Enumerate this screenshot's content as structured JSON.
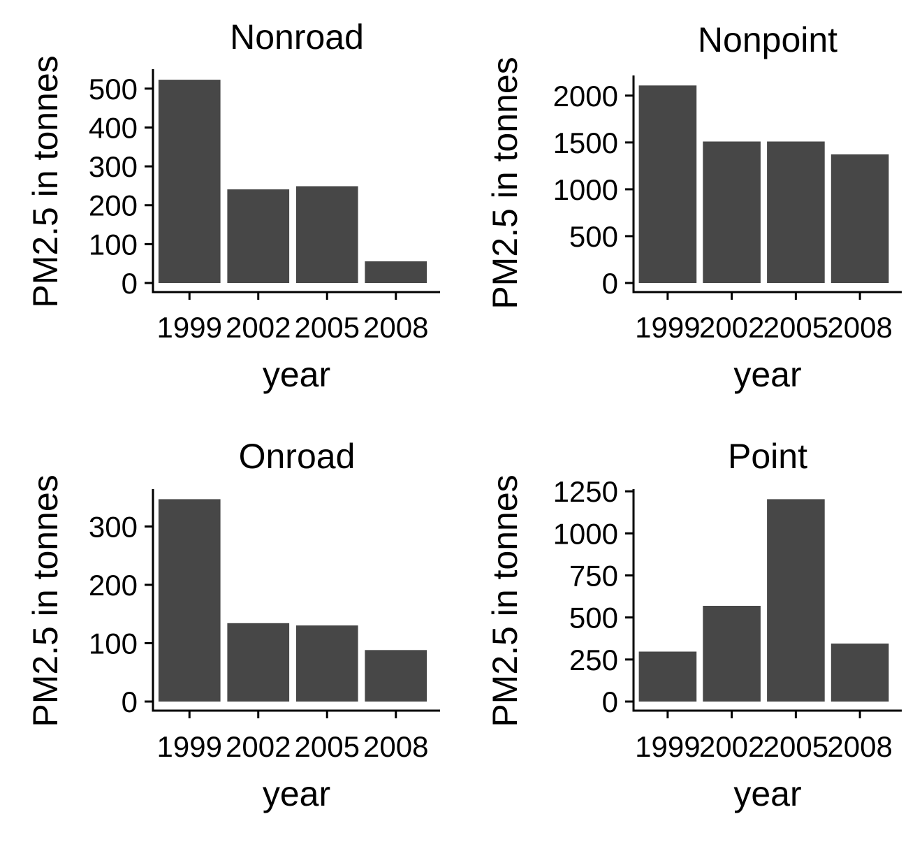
{
  "bar_color": "#474747",
  "axis_color": "#000000",
  "background": "#ffffff",
  "chart_data": [
    {
      "type": "bar",
      "title": "Nonroad",
      "xlabel": "year",
      "ylabel": "PM2.5 in tonnes",
      "categories": [
        "1999",
        "2002",
        "2005",
        "2008"
      ],
      "values": [
        522.9,
        240.8,
        248.9,
        55.8
      ],
      "ylim": [
        0,
        550
      ],
      "yticks": [
        0,
        100,
        200,
        300,
        400,
        500
      ],
      "ytick_labels": [
        "0",
        "100",
        "200",
        "300",
        "400",
        "500"
      ]
    },
    {
      "type": "bar",
      "title": "Nonpoint",
      "xlabel": "year",
      "ylabel": "PM2.5 in tonnes",
      "categories": [
        "1999",
        "2002",
        "2005",
        "2008"
      ],
      "values": [
        2108,
        1510,
        1510,
        1373
      ],
      "ylim": [
        0,
        2215
      ],
      "yticks": [
        0,
        500,
        1000,
        1500,
        2000
      ],
      "ytick_labels": [
        "0",
        "500",
        "1000",
        "1500",
        "2000"
      ]
    },
    {
      "type": "bar",
      "title": "Onroad",
      "xlabel": "year",
      "ylabel": "PM2.5 in tonnes",
      "categories": [
        "1999",
        "2002",
        "2005",
        "2008"
      ],
      "values": [
        346.8,
        134.3,
        130.4,
        88.3
      ],
      "ylim": [
        0,
        364
      ],
      "yticks": [
        0,
        100,
        200,
        300
      ],
      "ytick_labels": [
        "0",
        "100",
        "200",
        "300"
      ]
    },
    {
      "type": "bar",
      "title": "Point",
      "xlabel": "year",
      "ylabel": "PM2.5 in tonnes",
      "categories": [
        "1999",
        "2002",
        "2005",
        "2008"
      ],
      "values": [
        297,
        569,
        1203,
        345
      ],
      "ylim": [
        0,
        1263
      ],
      "yticks": [
        0,
        250,
        500,
        750,
        1000,
        1250
      ],
      "ytick_labels": [
        "0",
        "250",
        "500",
        "750",
        "1000",
        "1250"
      ]
    }
  ]
}
